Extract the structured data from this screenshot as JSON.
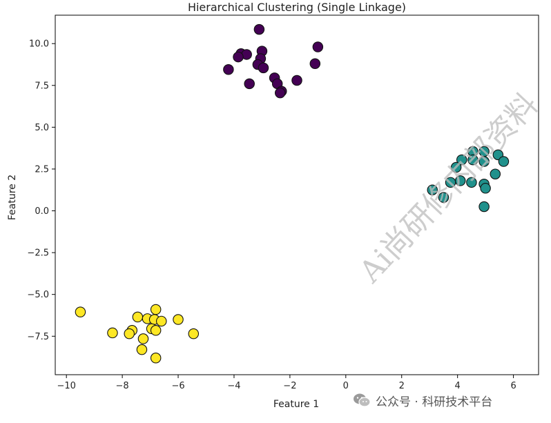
{
  "chart_data": {
    "type": "scatter",
    "title": "Hierarchical Clustering (Single Linkage)",
    "xlabel": "Feature 1",
    "ylabel": "Feature 2",
    "xlim": [
      -10.4,
      6.9
    ],
    "ylim": [
      -9.8,
      11.7
    ],
    "xticks": [
      -10,
      -8,
      -6,
      -4,
      -2,
      0,
      2,
      4,
      6
    ],
    "yticks": [
      -7.5,
      -5.0,
      -2.5,
      0.0,
      2.5,
      5.0,
      7.5,
      10.0
    ],
    "ytick_labels": [
      "−7.5",
      "−5.0",
      "−2.5",
      "0.0",
      "2.5",
      "5.0",
      "7.5",
      "10.0"
    ],
    "xtick_labels": [
      "−10",
      "−8",
      "−6",
      "−4",
      "−2",
      "0",
      "2",
      "4",
      "6"
    ],
    "grid": false,
    "series": [
      {
        "color": "#440154",
        "points": [
          [
            -3.1,
            10.85
          ],
          [
            -1.0,
            9.8
          ],
          [
            -3.75,
            9.4
          ],
          [
            -3.55,
            9.35
          ],
          [
            -3.85,
            9.2
          ],
          [
            -3.0,
            9.55
          ],
          [
            -3.05,
            9.1
          ],
          [
            -3.15,
            8.75
          ],
          [
            -2.95,
            8.55
          ],
          [
            -4.2,
            8.45
          ],
          [
            -1.1,
            8.8
          ],
          [
            -2.55,
            7.95
          ],
          [
            -2.45,
            7.6
          ],
          [
            -3.45,
            7.6
          ],
          [
            -1.75,
            7.8
          ],
          [
            -2.3,
            7.15
          ],
          [
            -2.35,
            7.05
          ]
        ]
      },
      {
        "color": "#21918c",
        "points": [
          [
            4.55,
            3.55
          ],
          [
            4.95,
            3.55
          ],
          [
            5.45,
            3.35
          ],
          [
            4.15,
            3.05
          ],
          [
            4.55,
            3.05
          ],
          [
            4.95,
            2.95
          ],
          [
            5.65,
            2.95
          ],
          [
            3.95,
            2.6
          ],
          [
            5.35,
            2.2
          ],
          [
            3.75,
            1.7
          ],
          [
            4.1,
            1.8
          ],
          [
            4.5,
            1.7
          ],
          [
            4.95,
            1.6
          ],
          [
            5.0,
            1.35
          ],
          [
            3.1,
            1.25
          ],
          [
            3.5,
            0.8
          ],
          [
            4.95,
            0.25
          ]
        ]
      },
      {
        "color": "#fde725",
        "points": [
          [
            -9.5,
            -6.05
          ],
          [
            -6.8,
            -5.9
          ],
          [
            -7.45,
            -6.35
          ],
          [
            -7.1,
            -6.45
          ],
          [
            -6.85,
            -6.5
          ],
          [
            -6.6,
            -6.6
          ],
          [
            -6.0,
            -6.5
          ],
          [
            -7.65,
            -7.15
          ],
          [
            -6.95,
            -7.05
          ],
          [
            -6.8,
            -7.15
          ],
          [
            -8.35,
            -7.3
          ],
          [
            -7.75,
            -7.35
          ],
          [
            -5.45,
            -7.35
          ],
          [
            -7.25,
            -7.65
          ],
          [
            -7.3,
            -8.3
          ],
          [
            -6.8,
            -8.8
          ]
        ]
      }
    ]
  },
  "watermarks": {
    "diagonal_text": "Ai尚研修内部资料",
    "footer_text": "公众号 · 科研技术平台",
    "footer_icon": "wechat-icon"
  }
}
